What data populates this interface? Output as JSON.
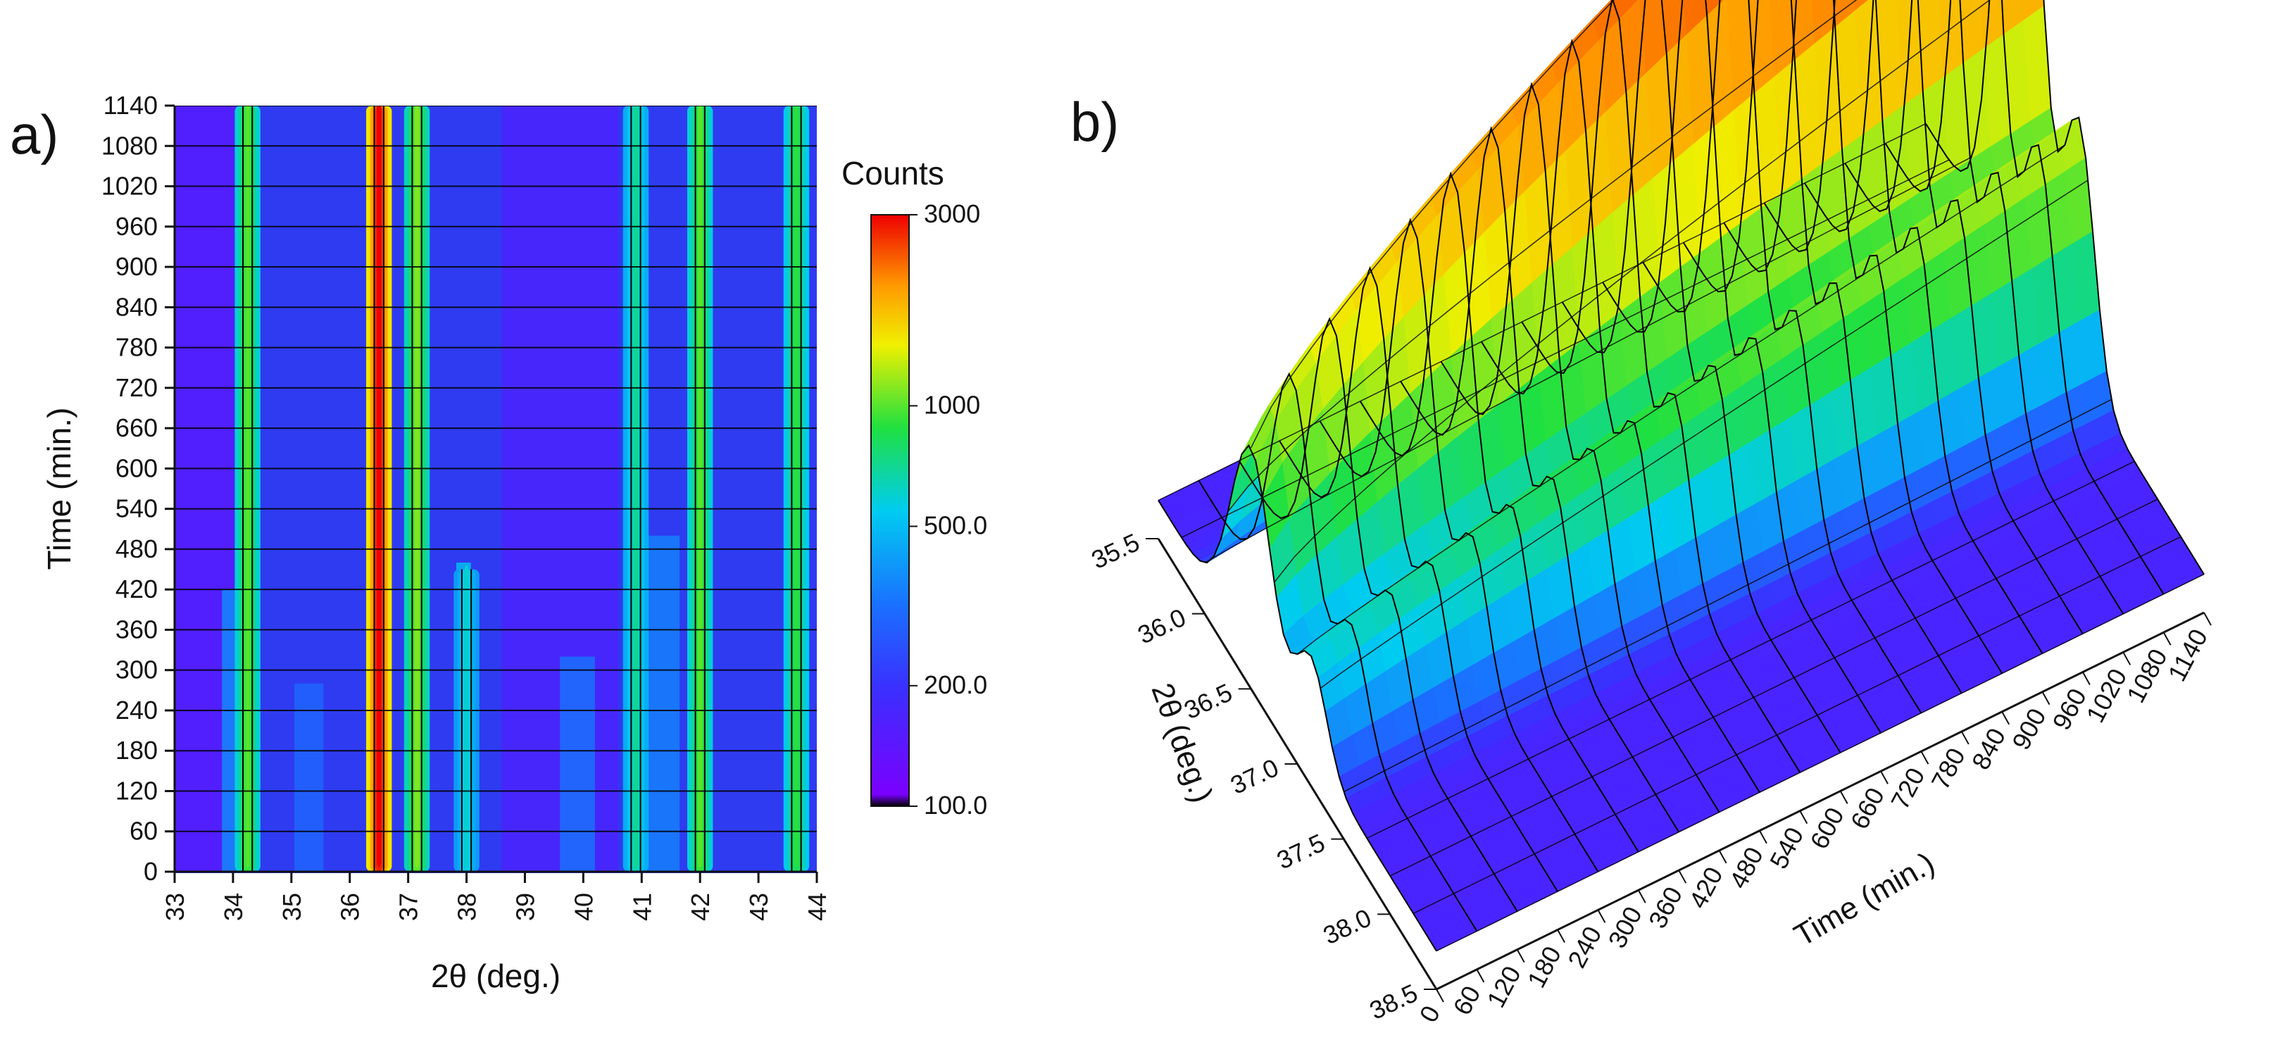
{
  "chart_data": [
    {
      "panel": "a)",
      "type": "heatmap",
      "xlabel": "2θ (deg.)",
      "ylabel": "Time (min.)",
      "xlim": [
        33,
        44
      ],
      "ylim": [
        0,
        1140
      ],
      "xticks": [
        "33",
        "34",
        "35",
        "36",
        "37",
        "38",
        "39",
        "40",
        "41",
        "42",
        "43",
        "44"
      ],
      "yticks": [
        "0",
        "60",
        "120",
        "180",
        "240",
        "300",
        "360",
        "420",
        "480",
        "540",
        "600",
        "660",
        "720",
        "780",
        "840",
        "900",
        "960",
        "1020",
        "1080",
        "1140"
      ],
      "colorbar": {
        "title": "Counts",
        "scale": "log",
        "range": [
          100,
          3000
        ],
        "tick_labels": [
          "3000",
          "1000",
          "500.0",
          "200.0",
          "100.0"
        ],
        "tick_values": [
          3000,
          1000,
          500,
          200,
          100
        ]
      },
      "background_counts": 180,
      "peaks": [
        {
          "two_theta": 34.25,
          "max_counts": 1000,
          "onset_min": 0,
          "end_min": 1140
        },
        {
          "two_theta": 36.5,
          "max_counts": 3000,
          "onset_min": 0,
          "end_min": 1140
        },
        {
          "two_theta": 37.15,
          "max_counts": 1100,
          "onset_min": 0,
          "end_min": 1140
        },
        {
          "two_theta": 38.0,
          "max_counts": 600,
          "onset_min": 0,
          "end_min": 450
        },
        {
          "two_theta": 40.9,
          "max_counts": 700,
          "onset_min": 0,
          "end_min": 1140
        },
        {
          "two_theta": 42.0,
          "max_counts": 1000,
          "onset_min": 0,
          "end_min": 1140
        },
        {
          "two_theta": 43.65,
          "max_counts": 900,
          "onset_min": 0,
          "end_min": 1140
        }
      ]
    },
    {
      "panel": "b)",
      "type": "surface",
      "xlabel": "Time (min.)",
      "ylabel": "2θ (deg.)",
      "xlim": [
        0,
        1140
      ],
      "ylim": [
        35.5,
        38.5
      ],
      "xticks": [
        "0",
        "60",
        "120",
        "180",
        "240",
        "300",
        "360",
        "420",
        "480",
        "540",
        "600",
        "660",
        "720",
        "780",
        "840",
        "900",
        "960",
        "1020",
        "1080",
        "1140"
      ],
      "yticks": [
        "35.5",
        "36.0",
        "36.5",
        "37.0",
        "37.5",
        "38.0",
        "38.5"
      ],
      "peaks": [
        {
          "two_theta": 36.5,
          "counts_start": 900,
          "counts_end": 3000
        },
        {
          "two_theta": 37.15,
          "counts_start": 400,
          "counts_end": 1100
        }
      ]
    }
  ]
}
